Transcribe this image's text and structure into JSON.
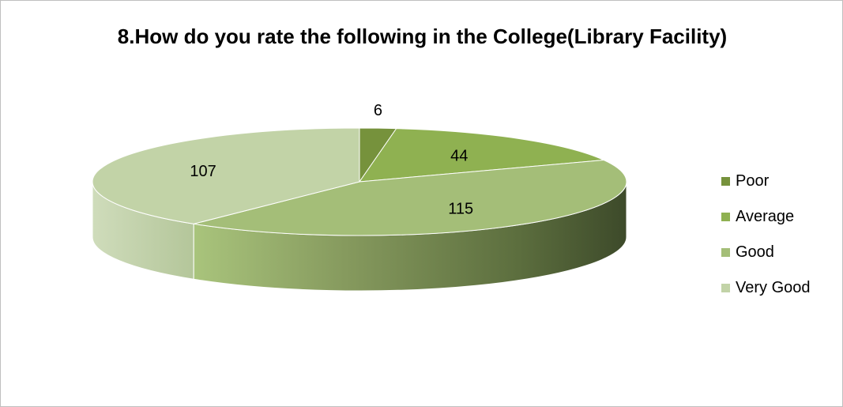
{
  "chart_data": {
    "type": "pie",
    "title": "8.How do you rate the following in the College(Library Facility)",
    "categories": [
      "Poor",
      "Average",
      "Good",
      "Very Good"
    ],
    "values": [
      6,
      44,
      115,
      107
    ],
    "colors": [
      "#76923C",
      "#8FB151",
      "#A4BE78",
      "#C2D3A7"
    ],
    "data_labels": [
      "6",
      "44",
      "115",
      "107"
    ],
    "style": "3d",
    "legend": "right"
  }
}
